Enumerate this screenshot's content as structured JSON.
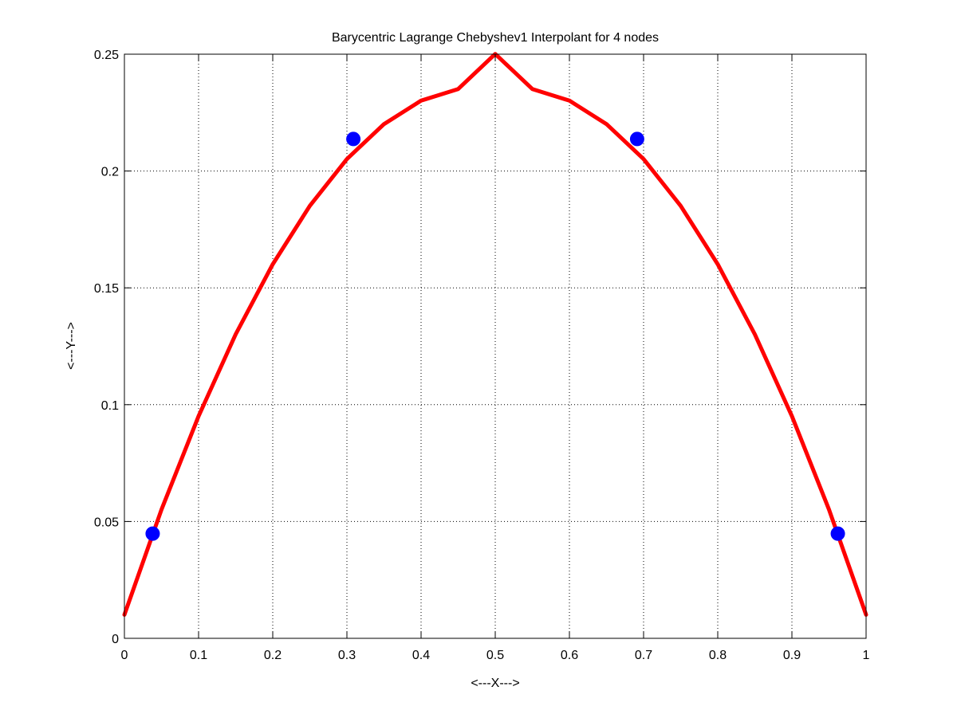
{
  "chart_data": {
    "type": "line",
    "title": "Barycentric Lagrange Chebyshev1 Interpolant for 4 nodes",
    "xlabel": "<---X--->",
    "ylabel": "<---Y--->",
    "xlim": [
      0,
      1
    ],
    "ylim": [
      0,
      0.25
    ],
    "xticks": [
      0,
      0.1,
      0.2,
      0.3,
      0.4,
      0.5,
      0.6,
      0.7,
      0.8,
      0.9,
      1
    ],
    "xtick_labels": [
      "0",
      "0.1",
      "0.2",
      "0.3",
      "0.4",
      "0.5",
      "0.6",
      "0.7",
      "0.8",
      "0.9",
      "1"
    ],
    "yticks": [
      0,
      0.05,
      0.1,
      0.15,
      0.2,
      0.25
    ],
    "ytick_labels": [
      "0",
      "0.05",
      "0.1",
      "0.15",
      "0.2",
      "0.25"
    ],
    "grid": true,
    "series": [
      {
        "style": "line",
        "color": "#ff0000",
        "x": [
          0,
          0.05,
          0.1,
          0.15,
          0.2,
          0.25,
          0.3,
          0.35,
          0.4,
          0.45,
          0.5,
          0.55,
          0.6,
          0.65,
          0.7,
          0.75,
          0.8,
          0.85,
          0.9,
          0.95,
          1
        ],
        "y": [
          0.0101,
          0.0551,
          0.0951,
          0.1301,
          0.1601,
          0.1851,
          0.2051,
          0.2201,
          0.2301,
          0.2351,
          0.2501,
          0.2351,
          0.2301,
          0.2201,
          0.2051,
          0.1851,
          0.1601,
          0.1301,
          0.0951,
          0.0551,
          0.0101
        ]
      },
      {
        "style": "markers",
        "color": "#0000ff",
        "x": [
          0.0381,
          0.3087,
          0.6913,
          0.9619
        ],
        "y": [
          0.0448,
          0.2137,
          0.2137,
          0.0448
        ]
      }
    ]
  }
}
